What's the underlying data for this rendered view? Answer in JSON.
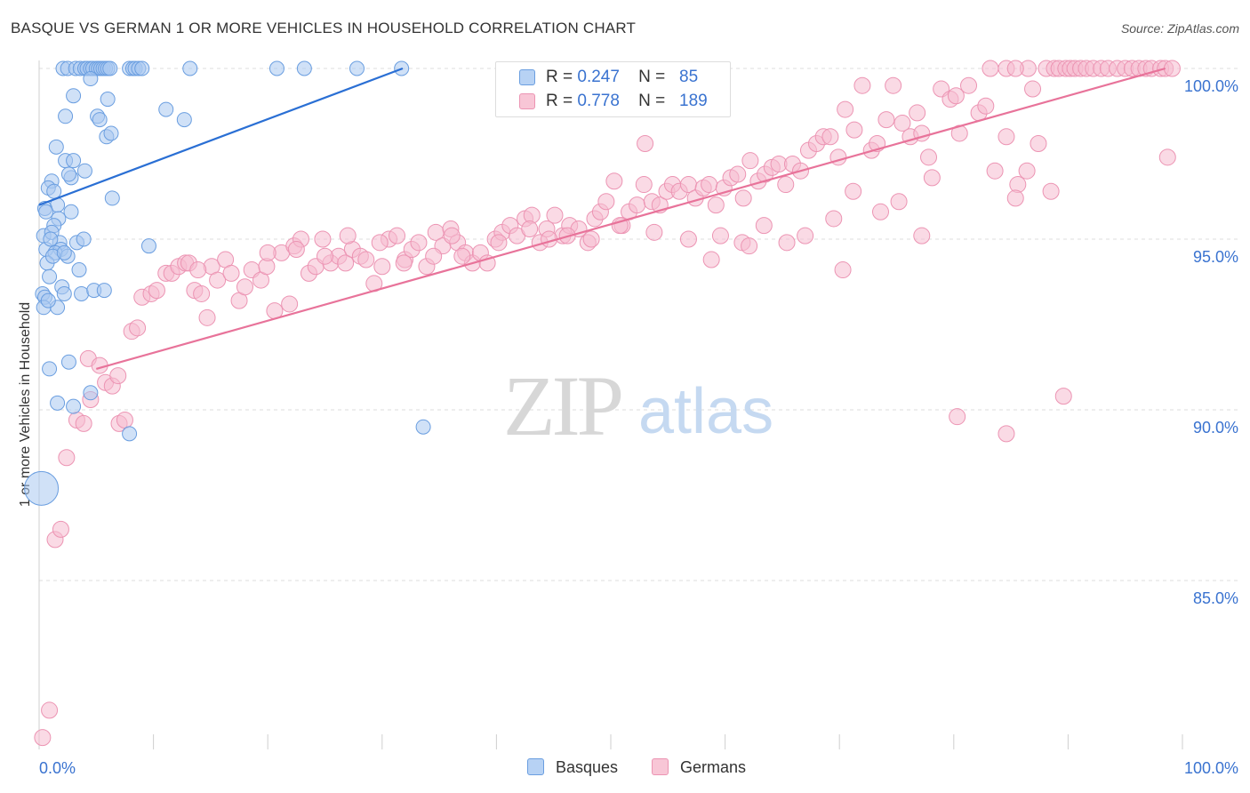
{
  "title": "BASQUE VS GERMAN 1 OR MORE VEHICLES IN HOUSEHOLD CORRELATION CHART",
  "source": "Source: ZipAtlas.com",
  "watermark": {
    "zip": "ZIP",
    "atlas": "atlas"
  },
  "legend": {
    "rows": [
      {
        "r_label": "R =",
        "r_value": "0.247",
        "n_label": "N =",
        "n_value": "85"
      },
      {
        "r_label": "R =",
        "r_value": "0.778",
        "n_label": "N =",
        "n_value": "189"
      }
    ]
  },
  "bottom_legend": {
    "items": [
      "Basques",
      "Germans"
    ]
  },
  "colors": {
    "basques_fill": "#a9c8f0",
    "basques_stroke": "#6a9ee0",
    "basques_line": "#2a6fd4",
    "germans_fill": "#f6bccf",
    "germans_stroke": "#ec94b3",
    "germans_line": "#e8739a",
    "tick_label": "#3a73d0",
    "grid": "#dddddd"
  },
  "chart_data": {
    "type": "scatter",
    "title": "BASQUE VS GERMAN 1 OR MORE VEHICLES IN HOUSEHOLD CORRELATION CHART",
    "xlabel": "",
    "ylabel": "1 or more Vehicles in Household",
    "xlim": [
      0,
      100
    ],
    "ylim": [
      80.2,
      100.7
    ],
    "x_tick_labels": [
      "0.0%",
      "100.0%"
    ],
    "y_ticks": [
      85,
      90,
      95,
      100
    ],
    "y_tick_labels": [
      "85.0%",
      "90.0%",
      "95.0%",
      "100.0%"
    ],
    "grid": true,
    "legend_position": "top-center",
    "series": [
      {
        "name": "Basques",
        "r": 0.247,
        "n": 85,
        "trend": {
          "x": [
            0,
            31.8
          ],
          "y": [
            96.0,
            100.0
          ]
        },
        "points": [
          [
            2.1,
            100
          ],
          [
            2.5,
            100
          ],
          [
            3.2,
            100
          ],
          [
            3.6,
            100
          ],
          [
            4.0,
            100
          ],
          [
            4.2,
            100
          ],
          [
            4.5,
            100
          ],
          [
            4.7,
            100
          ],
          [
            5.0,
            100
          ],
          [
            5.2,
            100
          ],
          [
            5.4,
            100
          ],
          [
            5.6,
            100
          ],
          [
            5.8,
            100
          ],
          [
            6.0,
            100
          ],
          [
            6.2,
            100
          ],
          [
            7.9,
            100
          ],
          [
            8.2,
            100
          ],
          [
            8.4,
            100
          ],
          [
            8.7,
            100
          ],
          [
            9.0,
            100
          ],
          [
            13.2,
            100
          ],
          [
            20.8,
            100
          ],
          [
            23.2,
            100
          ],
          [
            27.8,
            100
          ],
          [
            31.7,
            100
          ],
          [
            4.5,
            99.7
          ],
          [
            6.0,
            99.1
          ],
          [
            3.0,
            99.2
          ],
          [
            2.3,
            98.6
          ],
          [
            11.1,
            98.8
          ],
          [
            12.7,
            98.5
          ],
          [
            5.1,
            98.6
          ],
          [
            5.3,
            98.5
          ],
          [
            5.9,
            98.0
          ],
          [
            6.3,
            98.1
          ],
          [
            1.5,
            97.7
          ],
          [
            2.3,
            97.3
          ],
          [
            3.0,
            97.3
          ],
          [
            1.1,
            96.7
          ],
          [
            2.8,
            96.8
          ],
          [
            0.8,
            96.5
          ],
          [
            1.3,
            96.4
          ],
          [
            6.4,
            96.2
          ],
          [
            1.6,
            96.0
          ],
          [
            0.5,
            95.9
          ],
          [
            2.8,
            95.8
          ],
          [
            1.7,
            95.6
          ],
          [
            1.3,
            95.4
          ],
          [
            0.4,
            95.1
          ],
          [
            1.1,
            95.2
          ],
          [
            1.8,
            94.9
          ],
          [
            1.9,
            94.7
          ],
          [
            3.3,
            94.9
          ],
          [
            0.6,
            94.7
          ],
          [
            9.6,
            94.8
          ],
          [
            1.4,
            94.6
          ],
          [
            2.5,
            94.5
          ],
          [
            0.7,
            94.3
          ],
          [
            3.5,
            94.1
          ],
          [
            0.9,
            93.9
          ],
          [
            2.0,
            93.6
          ],
          [
            2.2,
            93.4
          ],
          [
            3.7,
            93.4
          ],
          [
            4.8,
            93.5
          ],
          [
            5.7,
            93.5
          ],
          [
            0.3,
            93.4
          ],
          [
            0.5,
            93.3
          ],
          [
            1.6,
            93.0
          ],
          [
            0.4,
            93.0
          ],
          [
            0.9,
            91.2
          ],
          [
            2.6,
            91.4
          ],
          [
            4.5,
            90.5
          ],
          [
            1.6,
            90.2
          ],
          [
            3.0,
            90.1
          ],
          [
            7.9,
            89.3
          ],
          [
            33.6,
            89.5
          ],
          [
            0.2,
            87.7
          ],
          [
            0.6,
            95.8
          ],
          [
            1.0,
            95.0
          ],
          [
            1.2,
            94.5
          ],
          [
            2.2,
            94.6
          ],
          [
            0.8,
            93.2
          ],
          [
            3.9,
            95.0
          ],
          [
            2.6,
            96.9
          ],
          [
            4.0,
            97.0
          ]
        ]
      },
      {
        "name": "Germans",
        "r": 0.778,
        "n": 189,
        "trend": {
          "x": [
            5.0,
            98.5
          ],
          "y": [
            91.2,
            100.0
          ]
        },
        "points": [
          [
            0.3,
            80.4
          ],
          [
            0.9,
            81.2
          ],
          [
            1.4,
            86.2
          ],
          [
            1.9,
            86.5
          ],
          [
            2.4,
            88.6
          ],
          [
            3.3,
            89.7
          ],
          [
            3.9,
            89.6
          ],
          [
            4.3,
            91.5
          ],
          [
            5.3,
            91.3
          ],
          [
            4.5,
            90.3
          ],
          [
            5.8,
            90.8
          ],
          [
            6.4,
            90.7
          ],
          [
            6.9,
            91.0
          ],
          [
            7.0,
            89.6
          ],
          [
            7.5,
            89.7
          ],
          [
            8.1,
            92.3
          ],
          [
            8.6,
            92.4
          ],
          [
            9.0,
            93.3
          ],
          [
            9.8,
            93.4
          ],
          [
            10.3,
            93.5
          ],
          [
            11.1,
            94.0
          ],
          [
            11.6,
            94.0
          ],
          [
            12.2,
            94.2
          ],
          [
            12.8,
            94.3
          ],
          [
            13.1,
            94.3
          ],
          [
            13.6,
            93.5
          ],
          [
            14.2,
            93.4
          ],
          [
            14.7,
            92.7
          ],
          [
            15.1,
            94.2
          ],
          [
            15.6,
            93.8
          ],
          [
            16.3,
            94.4
          ],
          [
            16.8,
            94.0
          ],
          [
            17.5,
            93.2
          ],
          [
            18.0,
            93.6
          ],
          [
            18.6,
            94.1
          ],
          [
            19.4,
            93.8
          ],
          [
            19.9,
            94.2
          ],
          [
            20.6,
            92.9
          ],
          [
            21.2,
            94.6
          ],
          [
            21.9,
            93.1
          ],
          [
            22.3,
            94.8
          ],
          [
            22.9,
            95.0
          ],
          [
            23.6,
            94.0
          ],
          [
            24.2,
            94.2
          ],
          [
            24.8,
            95.0
          ],
          [
            25.5,
            94.3
          ],
          [
            26.2,
            94.5
          ],
          [
            26.8,
            94.3
          ],
          [
            27.4,
            94.7
          ],
          [
            28.1,
            94.5
          ],
          [
            28.6,
            94.4
          ],
          [
            29.3,
            93.7
          ],
          [
            30.0,
            94.2
          ],
          [
            30.6,
            95.0
          ],
          [
            31.3,
            95.1
          ],
          [
            32.0,
            94.4
          ],
          [
            32.6,
            94.7
          ],
          [
            33.2,
            94.9
          ],
          [
            33.9,
            94.2
          ],
          [
            34.7,
            95.2
          ],
          [
            35.3,
            94.8
          ],
          [
            36.0,
            95.3
          ],
          [
            36.6,
            94.9
          ],
          [
            37.3,
            94.6
          ],
          [
            37.9,
            94.3
          ],
          [
            38.6,
            94.6
          ],
          [
            39.2,
            94.3
          ],
          [
            39.9,
            95.0
          ],
          [
            40.5,
            95.2
          ],
          [
            41.2,
            95.4
          ],
          [
            41.8,
            95.1
          ],
          [
            42.5,
            95.6
          ],
          [
            43.1,
            95.7
          ],
          [
            43.8,
            94.9
          ],
          [
            44.4,
            95.3
          ],
          [
            45.1,
            95.7
          ],
          [
            45.8,
            95.1
          ],
          [
            46.4,
            95.4
          ],
          [
            47.2,
            95.3
          ],
          [
            48.0,
            94.9
          ],
          [
            48.6,
            95.6
          ],
          [
            49.1,
            95.8
          ],
          [
            49.6,
            96.1
          ],
          [
            50.3,
            96.7
          ],
          [
            51.0,
            95.4
          ],
          [
            51.6,
            95.8
          ],
          [
            52.3,
            96.0
          ],
          [
            52.9,
            96.6
          ],
          [
            53.6,
            96.1
          ],
          [
            54.3,
            96.0
          ],
          [
            54.9,
            96.4
          ],
          [
            55.4,
            96.6
          ],
          [
            56.0,
            96.4
          ],
          [
            56.8,
            96.6
          ],
          [
            57.4,
            96.2
          ],
          [
            58.1,
            96.5
          ],
          [
            58.6,
            96.6
          ],
          [
            59.2,
            96.0
          ],
          [
            59.9,
            96.5
          ],
          [
            60.5,
            96.8
          ],
          [
            61.1,
            96.9
          ],
          [
            61.6,
            96.2
          ],
          [
            62.2,
            97.3
          ],
          [
            62.9,
            96.7
          ],
          [
            63.5,
            96.9
          ],
          [
            64.1,
            97.1
          ],
          [
            64.7,
            97.2
          ],
          [
            65.3,
            96.6
          ],
          [
            65.9,
            97.2
          ],
          [
            66.6,
            97.0
          ],
          [
            67.3,
            97.6
          ],
          [
            68.0,
            97.8
          ],
          [
            68.6,
            98.0
          ],
          [
            69.2,
            98.0
          ],
          [
            69.9,
            97.4
          ],
          [
            70.5,
            98.8
          ],
          [
            71.3,
            98.2
          ],
          [
            72.0,
            99.5
          ],
          [
            72.8,
            97.6
          ],
          [
            73.3,
            97.8
          ],
          [
            74.1,
            98.5
          ],
          [
            74.7,
            99.5
          ],
          [
            75.5,
            98.4
          ],
          [
            76.2,
            98.0
          ],
          [
            76.8,
            98.7
          ],
          [
            77.2,
            98.1
          ],
          [
            78.1,
            96.8
          ],
          [
            78.9,
            99.4
          ],
          [
            79.7,
            99.1
          ],
          [
            80.2,
            99.2
          ],
          [
            81.3,
            99.5
          ],
          [
            82.2,
            98.7
          ],
          [
            82.8,
            98.9
          ],
          [
            83.6,
            97.0
          ],
          [
            84.6,
            98.0
          ],
          [
            85.6,
            96.6
          ],
          [
            86.4,
            97.0
          ],
          [
            86.9,
            99.4
          ],
          [
            87.4,
            97.8
          ],
          [
            88.1,
            100
          ],
          [
            88.8,
            100
          ],
          [
            89.2,
            100
          ],
          [
            89.8,
            100
          ],
          [
            90.2,
            100
          ],
          [
            90.6,
            100
          ],
          [
            91.1,
            100
          ],
          [
            91.6,
            100
          ],
          [
            92.2,
            100
          ],
          [
            92.9,
            100
          ],
          [
            93.5,
            100
          ],
          [
            94.3,
            100
          ],
          [
            95.0,
            100
          ],
          [
            95.6,
            100
          ],
          [
            96.2,
            100
          ],
          [
            96.8,
            100
          ],
          [
            97.3,
            100
          ],
          [
            98.1,
            100
          ],
          [
            98.5,
            100
          ],
          [
            99.1,
            100
          ],
          [
            84.6,
            100
          ],
          [
            86.5,
            100
          ],
          [
            83.2,
            100
          ],
          [
            85.4,
            100
          ],
          [
            80.5,
            98.1
          ],
          [
            77.8,
            97.4
          ],
          [
            75.2,
            96.1
          ],
          [
            73.6,
            95.8
          ],
          [
            71.2,
            96.4
          ],
          [
            69.5,
            95.6
          ],
          [
            67.0,
            95.1
          ],
          [
            65.4,
            94.9
          ],
          [
            63.4,
            95.4
          ],
          [
            61.5,
            94.9
          ],
          [
            59.6,
            95.1
          ],
          [
            56.8,
            95.0
          ],
          [
            53.8,
            95.2
          ],
          [
            50.8,
            95.4
          ],
          [
            48.3,
            95.0
          ],
          [
            46.2,
            95.1
          ],
          [
            44.6,
            95.0
          ],
          [
            42.9,
            95.3
          ],
          [
            40.2,
            94.9
          ],
          [
            37.0,
            94.5
          ],
          [
            34.5,
            94.5
          ],
          [
            31.9,
            94.3
          ],
          [
            29.8,
            94.9
          ],
          [
            27.0,
            95.1
          ],
          [
            25.0,
            94.5
          ],
          [
            22.5,
            94.7
          ],
          [
            20.0,
            94.6
          ],
          [
            13.9,
            94.1
          ],
          [
            36.1,
            95.1
          ],
          [
            53.0,
            97.8
          ],
          [
            89.6,
            90.4
          ],
          [
            84.6,
            89.3
          ],
          [
            80.3,
            89.8
          ],
          [
            98.7,
            97.4
          ],
          [
            88.5,
            96.4
          ],
          [
            85.4,
            96.2
          ],
          [
            77.2,
            95.1
          ],
          [
            70.3,
            94.1
          ],
          [
            62.1,
            94.8
          ],
          [
            58.8,
            94.4
          ]
        ]
      }
    ]
  }
}
